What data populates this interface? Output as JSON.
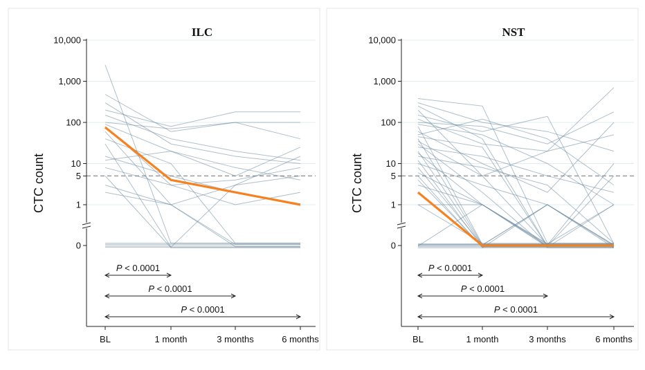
{
  "colors": {
    "median": "#f5821f",
    "traces": "#6e8aa0",
    "grid": "#e1ebee",
    "threshold": "#9a9a9a",
    "axis": "#222222"
  },
  "chart_data": [
    {
      "type": "line",
      "title": "ILC",
      "ylabel": "CTC count",
      "categories": [
        "BL",
        "1 month",
        "3 months",
        "6 months"
      ],
      "y_scale": "log with broken axis at 0",
      "y_ticks": [
        "0",
        "1",
        "5",
        "10",
        "100",
        "1,000",
        "10,000"
      ],
      "threshold": 5,
      "grid": true,
      "series": [
        {
          "values": [
            76,
            4,
            2,
            1
          ]
        }
      ],
      "traces": [
        [
          2500,
          0,
          0,
          0
        ],
        [
          480,
          60,
          100,
          40
        ],
        [
          300,
          30,
          15,
          10
        ],
        [
          200,
          80,
          180,
          180
        ],
        [
          150,
          40,
          20,
          12
        ],
        [
          100,
          70,
          100,
          100
        ],
        [
          90,
          20,
          5,
          25
        ],
        [
          80,
          3,
          4,
          8
        ],
        [
          60,
          1,
          0,
          0
        ],
        [
          40,
          10,
          0,
          0
        ],
        [
          30,
          0,
          3,
          5
        ],
        [
          15,
          5,
          2,
          1
        ],
        [
          12,
          20,
          8,
          4
        ],
        [
          8,
          3,
          1,
          2
        ],
        [
          5,
          0,
          0,
          0
        ],
        [
          3,
          1,
          0,
          0
        ],
        [
          2,
          1,
          3,
          15
        ],
        [
          0,
          0,
          0,
          0
        ],
        [
          0,
          0,
          0,
          0
        ],
        [
          0,
          0,
          0,
          0
        ],
        [
          0,
          0,
          0,
          0
        ]
      ],
      "annotations": [
        {
          "from": "BL",
          "to": "1 month",
          "p_label": "P",
          "text": " < 0.0001"
        },
        {
          "from": "BL",
          "to": "3 months",
          "p_label": "P",
          "text": " < 0.0001"
        },
        {
          "from": "BL",
          "to": "6 months",
          "p_label": "P",
          "text": " < 0.0001"
        }
      ]
    },
    {
      "type": "line",
      "title": "NST",
      "ylabel": "CTC count",
      "categories": [
        "BL",
        "1 month",
        "3 months",
        "6 months"
      ],
      "y_scale": "log with broken axis at 0",
      "y_ticks": [
        "0",
        "1",
        "5",
        "10",
        "100",
        "1,000",
        "10,000"
      ],
      "threshold": 5,
      "grid": true,
      "series": [
        {
          "values": [
            2,
            0,
            0,
            0
          ]
        }
      ],
      "traces": [
        [
          380,
          250,
          0,
          0
        ],
        [
          300,
          100,
          60,
          20
        ],
        [
          250,
          40,
          0,
          5
        ],
        [
          200,
          5,
          0,
          0
        ],
        [
          150,
          60,
          140,
          0
        ],
        [
          120,
          30,
          20,
          700
        ],
        [
          100,
          80,
          30,
          180
        ],
        [
          90,
          50,
          10,
          1
        ],
        [
          80,
          0,
          0,
          0
        ],
        [
          60,
          10,
          2,
          100
        ],
        [
          50,
          120,
          40,
          3
        ],
        [
          45,
          25,
          0,
          0
        ],
        [
          40,
          0,
          1,
          0
        ],
        [
          35,
          5,
          20,
          50
        ],
        [
          30,
          2,
          0,
          0
        ],
        [
          25,
          15,
          5,
          2
        ],
        [
          20,
          0,
          0,
          0
        ],
        [
          18,
          1,
          0,
          0
        ],
        [
          15,
          8,
          3,
          0
        ],
        [
          12,
          0,
          0,
          0
        ],
        [
          10,
          3,
          1,
          0
        ],
        [
          8,
          0,
          0,
          10
        ],
        [
          6,
          1,
          0,
          0
        ],
        [
          5,
          0,
          1,
          0
        ],
        [
          4,
          0,
          0,
          0
        ],
        [
          3,
          1,
          0,
          0
        ],
        [
          2,
          0,
          0,
          0
        ],
        [
          1,
          0,
          0,
          0
        ],
        [
          1,
          1,
          0,
          1
        ],
        [
          0,
          1,
          0,
          0
        ],
        [
          0,
          0,
          1,
          0
        ],
        [
          0,
          0,
          0,
          1
        ],
        [
          0,
          0,
          0,
          0
        ],
        [
          0,
          0,
          0,
          0
        ],
        [
          0,
          0,
          0,
          0
        ],
        [
          0,
          0,
          0,
          0
        ]
      ],
      "annotations": [
        {
          "from": "BL",
          "to": "1 month",
          "p_label": "P",
          "text": " < 0.0001"
        },
        {
          "from": "BL",
          "to": "3 months",
          "p_label": "P",
          "text": " < 0.0001"
        },
        {
          "from": "BL",
          "to": "6 months",
          "p_label": "P",
          "text": " < 0.0001"
        }
      ]
    }
  ]
}
